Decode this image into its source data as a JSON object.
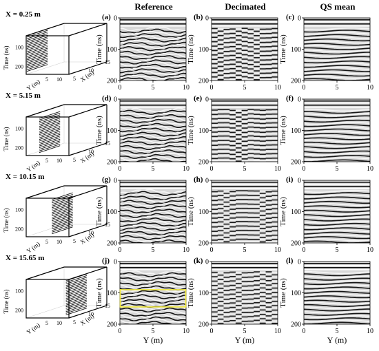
{
  "columns": {
    "reference": "Reference",
    "decimated": "Decimated",
    "qs_mean": "QS mean"
  },
  "rows": [
    {
      "x_label": "X = 0.25 m",
      "slice_x": 0.25,
      "panels": [
        "(a)",
        "(b)",
        "(c)"
      ]
    },
    {
      "x_label": "X = 5.15 m",
      "slice_x": 5.15,
      "panels": [
        "(d)",
        "(e)",
        "(f)"
      ]
    },
    {
      "x_label": "X = 10.15 m",
      "slice_x": 10.15,
      "panels": [
        "(g)",
        "(h)",
        "(i)"
      ]
    },
    {
      "x_label": "X = 15.65 m",
      "slice_x": 15.65,
      "panels": [
        "(j)",
        "(k)",
        "(l)"
      ]
    }
  ],
  "cube_axes": {
    "ylabel": "Time (ns)",
    "yticks": [
      "100",
      "200"
    ],
    "y_axis_label": "Y (m)",
    "y_ticks": [
      "5",
      "10"
    ],
    "x_axis_label": "X (m)",
    "x_ticks": [
      "5",
      "10",
      "15"
    ]
  },
  "chart_data": {
    "type": "heatmap",
    "ylabel": "Time (ns)",
    "xlabel": "Y (m)",
    "yticks": [
      "0",
      "100",
      "200"
    ],
    "xticks": [
      "0",
      "5",
      "10"
    ],
    "ylim": [
      200,
      0
    ],
    "xlim": [
      0,
      10
    ],
    "colormap": "grayscale",
    "highlight": {
      "panel": "(j)",
      "y_range_ns": [
        90,
        145
      ],
      "color": "#f2ea3a"
    }
  }
}
